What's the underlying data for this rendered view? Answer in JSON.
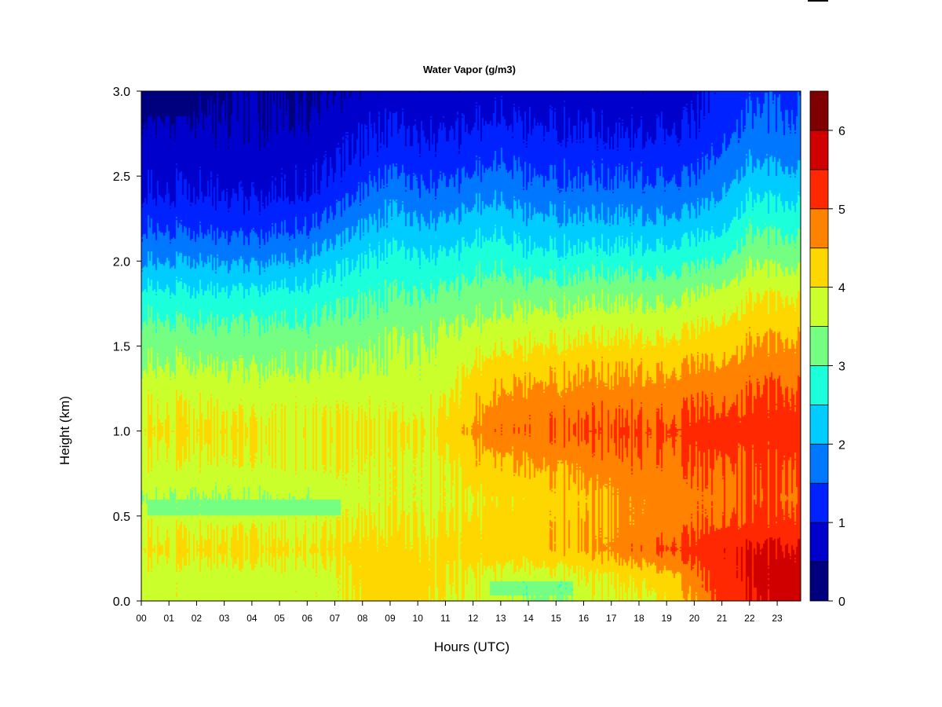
{
  "chart_data": {
    "type": "heatmap",
    "title": "Water Vapor (g/m3)",
    "xlabel": "Hours (UTC)",
    "ylabel": "Height (km)",
    "xlim": [
      0,
      23.85
    ],
    "ylim": [
      0.0,
      3.0
    ],
    "x_ticks": [
      "00",
      "01",
      "02",
      "03",
      "04",
      "05",
      "06",
      "07",
      "08",
      "09",
      "10",
      "11",
      "12",
      "13",
      "14",
      "15",
      "16",
      "17",
      "18",
      "19",
      "20",
      "21",
      "22",
      "23"
    ],
    "y_ticks": [
      "0.0",
      "0.5",
      "1.0",
      "1.5",
      "2.0",
      "2.5",
      "3.0"
    ],
    "colorbar": {
      "range": [
        0,
        6.5
      ],
      "step": 0.5,
      "tick_labels": [
        "0",
        "1",
        "2",
        "3",
        "4",
        "5",
        "6"
      ],
      "tick_values": [
        0,
        1,
        2,
        3,
        4,
        5,
        6
      ],
      "colors": [
        "#00007F",
        "#0000CD",
        "#0022FF",
        "#0077FF",
        "#00CCFF",
        "#1CFFDB",
        "#74FF83",
        "#CBFF2C",
        "#FFD700",
        "#FF8300",
        "#FF2800",
        "#D10000",
        "#7F0000"
      ]
    },
    "height_levels_km": [
      0.0,
      0.15,
      0.3,
      0.45,
      0.6,
      0.8,
      1.0,
      1.2,
      1.4,
      1.6,
      1.8,
      2.0,
      2.2,
      2.4,
      2.6,
      2.8,
      3.0
    ],
    "profiles": [
      {
        "hour": 0,
        "values": [
          3.8,
          3.8,
          4.1,
          3.9,
          3.6,
          3.9,
          4.1,
          3.9,
          3.5,
          3.2,
          2.7,
          2.0,
          1.5,
          1.0,
          0.8,
          0.6,
          0.3
        ]
      },
      {
        "hour": 2,
        "values": [
          3.8,
          3.8,
          4.1,
          3.9,
          3.5,
          3.9,
          4.1,
          3.9,
          3.5,
          3.1,
          2.6,
          2.0,
          1.4,
          1.0,
          0.8,
          0.6,
          0.3
        ]
      },
      {
        "hour": 4,
        "values": [
          3.8,
          3.8,
          4.1,
          3.9,
          3.5,
          3.9,
          4.0,
          3.8,
          3.4,
          3.1,
          2.6,
          1.9,
          1.3,
          0.9,
          0.7,
          0.5,
          0.5
        ]
      },
      {
        "hour": 6,
        "values": [
          3.8,
          3.8,
          4.1,
          3.9,
          3.6,
          3.9,
          4.0,
          3.8,
          3.5,
          3.1,
          2.7,
          2.1,
          1.5,
          1.0,
          0.8,
          0.6,
          0.5
        ]
      },
      {
        "hour": 7,
        "values": [
          3.8,
          3.8,
          4.1,
          3.9,
          3.7,
          3.9,
          4.0,
          3.8,
          3.5,
          3.2,
          2.8,
          2.3,
          1.7,
          1.2,
          0.9,
          0.7,
          0.5
        ]
      },
      {
        "hour": 8,
        "values": [
          4.1,
          4.2,
          4.2,
          4.0,
          3.8,
          3.9,
          4.0,
          3.8,
          3.5,
          3.2,
          2.9,
          2.5,
          2.0,
          1.5,
          1.1,
          0.9,
          0.6
        ]
      },
      {
        "hour": 9,
        "values": [
          4.3,
          4.3,
          4.2,
          4.0,
          3.9,
          3.9,
          4.0,
          3.8,
          3.6,
          3.4,
          3.0,
          2.7,
          2.2,
          1.8,
          1.3,
          1.0,
          0.7
        ]
      },
      {
        "hour": 10,
        "values": [
          4.2,
          4.3,
          4.1,
          4.0,
          3.9,
          3.9,
          4.0,
          3.8,
          3.6,
          3.4,
          3.0,
          2.6,
          2.1,
          1.6,
          1.2,
          0.9,
          0.7
        ]
      },
      {
        "hour": 11,
        "values": [
          3.9,
          4.0,
          4.1,
          4.0,
          3.9,
          3.9,
          4.1,
          3.9,
          3.7,
          3.5,
          3.1,
          2.6,
          2.1,
          1.6,
          1.2,
          0.9,
          0.7
        ]
      },
      {
        "hour": 12,
        "values": [
          3.9,
          4.0,
          4.2,
          4.1,
          4.0,
          4.3,
          4.6,
          4.3,
          4.0,
          3.6,
          3.2,
          2.8,
          2.3,
          1.8,
          1.3,
          1.0,
          0.7
        ]
      },
      {
        "hour": 13,
        "values": [
          3.7,
          3.9,
          4.3,
          4.2,
          4.1,
          4.4,
          4.9,
          4.6,
          4.2,
          3.7,
          3.3,
          2.9,
          2.4,
          1.9,
          1.5,
          1.1,
          0.8
        ]
      },
      {
        "hour": 14,
        "values": [
          3.4,
          3.8,
          4.3,
          4.3,
          4.2,
          4.5,
          4.9,
          4.7,
          4.2,
          3.8,
          3.3,
          2.7,
          2.2,
          1.7,
          1.3,
          1.0,
          0.7
        ]
      },
      {
        "hour": 15,
        "values": [
          3.4,
          3.9,
          4.4,
          4.4,
          4.3,
          4.6,
          5.0,
          4.7,
          4.3,
          3.8,
          3.3,
          2.7,
          2.2,
          1.7,
          1.3,
          1.0,
          0.7
        ]
      },
      {
        "hour": 16,
        "values": [
          3.8,
          4.0,
          4.5,
          4.5,
          4.4,
          4.7,
          5.1,
          4.8,
          4.4,
          3.9,
          3.4,
          2.8,
          2.2,
          1.7,
          1.3,
          1.0,
          0.7
        ]
      },
      {
        "hour": 17,
        "values": [
          3.9,
          4.1,
          4.7,
          4.6,
          4.6,
          4.8,
          5.1,
          4.8,
          4.4,
          3.9,
          3.4,
          2.8,
          2.2,
          1.7,
          1.3,
          0.9,
          0.7
        ]
      },
      {
        "hour": 18,
        "values": [
          3.9,
          4.2,
          4.9,
          4.7,
          4.7,
          4.9,
          5.1,
          4.8,
          4.4,
          3.9,
          3.4,
          2.8,
          2.2,
          1.7,
          1.3,
          0.9,
          0.7
        ]
      },
      {
        "hour": 19,
        "values": [
          4.1,
          4.4,
          5.1,
          4.8,
          4.7,
          4.9,
          5.1,
          4.8,
          4.4,
          3.9,
          3.4,
          2.8,
          2.2,
          1.7,
          1.3,
          1.0,
          0.7
        ]
      },
      {
        "hour": 20,
        "values": [
          4.5,
          4.8,
          5.2,
          4.9,
          4.8,
          5.0,
          5.2,
          4.9,
          4.5,
          4.0,
          3.5,
          2.9,
          2.3,
          1.7,
          1.3,
          1.0,
          0.8
        ]
      },
      {
        "hour": 21,
        "values": [
          5.2,
          5.3,
          5.4,
          5.0,
          4.9,
          5.0,
          5.2,
          4.9,
          4.5,
          4.1,
          3.7,
          3.0,
          2.4,
          2.0,
          1.6,
          1.3,
          1.2
        ]
      },
      {
        "hour": 22,
        "values": [
          5.4,
          5.5,
          5.5,
          5.1,
          5.0,
          5.0,
          5.2,
          5.0,
          4.7,
          4.3,
          3.9,
          3.4,
          2.9,
          2.4,
          1.9,
          1.6,
          1.3
        ]
      },
      {
        "hour": 23,
        "values": [
          5.7,
          5.8,
          5.6,
          5.2,
          5.0,
          5.1,
          5.3,
          5.1,
          4.8,
          4.4,
          4.0,
          3.4,
          2.9,
          2.4,
          1.9,
          1.6,
          1.4
        ]
      },
      {
        "hour": 23.85,
        "values": [
          5.8,
          5.8,
          5.6,
          5.2,
          5.0,
          5.1,
          5.3,
          5.1,
          4.8,
          4.4,
          4.0,
          3.4,
          2.9,
          2.4,
          1.9,
          1.6,
          1.4
        ]
      }
    ],
    "anomalies": [
      {
        "x": [
          12.6,
          15.6
        ],
        "y": [
          0.03,
          0.12
        ],
        "value": 3.2
      },
      {
        "x": [
          0.2,
          1.9
        ],
        "y": [
          2.85,
          3.0
        ],
        "value": 0.2
      },
      {
        "x": [
          0.2,
          7.2
        ],
        "y": [
          0.5,
          0.6
        ],
        "value": 3.3
      }
    ],
    "legend": "right colorbar",
    "grid": false
  }
}
